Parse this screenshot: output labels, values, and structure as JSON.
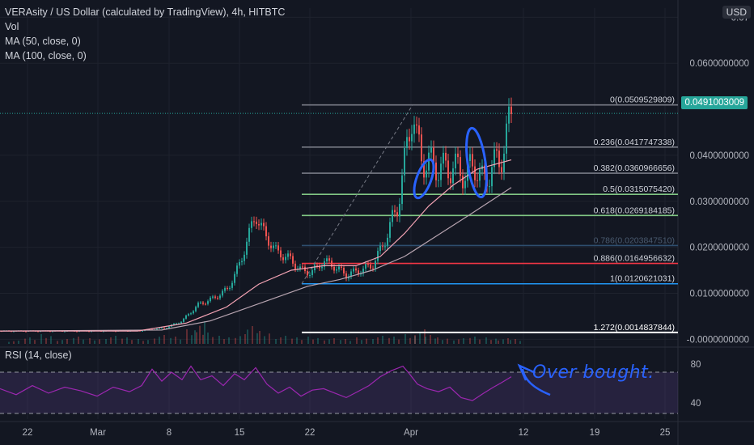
{
  "header": {
    "title": "VERAsity / US Dollar (calculated by TradingView), 4h, HITBTC",
    "indicators": [
      "Vol",
      "MA (50, close, 0)",
      "MA (100, close, 0)"
    ],
    "currency_badge": "USD"
  },
  "rsi": {
    "label": "RSI (14, close)",
    "levels": [
      "80",
      "40"
    ]
  },
  "annotation": "Over bought.",
  "last_price": "0.0491003009",
  "colors": {
    "background": "#131722",
    "up": "#26a69a",
    "down": "#ef5350",
    "ma50": "#f4a3b4",
    "ma100": "#b7a4b0",
    "rsi_line": "#9c27b0",
    "annotation": "#2962ff"
  },
  "chart_data": {
    "type": "candlestick",
    "x_ticks": [
      "22",
      "Mar",
      "8",
      "15",
      "22",
      "Apr",
      "12",
      "19",
      "25"
    ],
    "y_ticks": [
      "0.07",
      "0.0600000000",
      "0.0400000000",
      "0.0300000000",
      "0.0200000000",
      "0.0100000000",
      "-0.0000000000"
    ],
    "ylim": [
      -0.001,
      0.072
    ],
    "fib_levels": [
      {
        "ratio": "0",
        "label": "0(0.0509529809)",
        "value": 0.0509529809,
        "color": "#787b86"
      },
      {
        "ratio": "0.236",
        "label": "0.236(0.0417747338)",
        "value": 0.0417747338,
        "color": "#787b86"
      },
      {
        "ratio": "0.382",
        "label": "0.382(0.0360966656)",
        "value": 0.0360966656,
        "color": "#787b86"
      },
      {
        "ratio": "0.5",
        "label": "0.5(0.0315075420)",
        "value": 0.031507542,
        "color": "#81c784"
      },
      {
        "ratio": "0.618",
        "label": "0.618(0.0269184185)",
        "value": 0.0269184185,
        "color": "#81c784"
      },
      {
        "ratio": "0.786",
        "label": "0.786(0.0203847510)",
        "value": 0.020384751,
        "color": "#2e4e6e"
      },
      {
        "ratio": "0.886",
        "label": "0.886(0.0164956632)",
        "value": 0.0164956632,
        "color": "#f23645"
      },
      {
        "ratio": "1",
        "label": "1(0.0120621031)",
        "value": 0.0120621031,
        "color": "#2196f3"
      },
      {
        "ratio": "1.272",
        "label": "1.272(0.0014837844)",
        "value": 0.0014837844,
        "color": "#ffffff"
      }
    ],
    "price_series": [
      [
        0,
        0.0018
      ],
      [
        55,
        0.0018
      ],
      [
        110,
        0.0018
      ],
      [
        175,
        0.0019
      ],
      [
        205,
        0.0025
      ],
      [
        225,
        0.004
      ],
      [
        245,
        0.0075
      ],
      [
        265,
        0.009
      ],
      [
        282,
        0.011
      ],
      [
        298,
        0.017
      ],
      [
        306,
        0.022
      ],
      [
        316,
        0.027
      ],
      [
        328,
        0.0225
      ],
      [
        342,
        0.019
      ],
      [
        358,
        0.0175
      ],
      [
        372,
        0.015
      ],
      [
        385,
        0.0145
      ],
      [
        400,
        0.017
      ],
      [
        412,
        0.016
      ],
      [
        428,
        0.014
      ],
      [
        445,
        0.015
      ],
      [
        460,
        0.016
      ],
      [
        475,
        0.021
      ],
      [
        490,
        0.028
      ],
      [
        500,
        0.038
      ],
      [
        510,
        0.0505
      ],
      [
        515,
        0.043
      ],
      [
        522,
        0.039
      ],
      [
        535,
        0.038
      ],
      [
        548,
        0.037
      ],
      [
        560,
        0.0375
      ],
      [
        575,
        0.036
      ],
      [
        588,
        0.038
      ],
      [
        597,
        0.034
      ],
      [
        608,
        0.0375
      ],
      [
        618,
        0.039
      ],
      [
        625,
        0.043
      ],
      [
        632,
        0.0491
      ]
    ],
    "ma50": [
      [
        0,
        0.0018
      ],
      [
        170,
        0.0018
      ],
      [
        230,
        0.0035
      ],
      [
        280,
        0.007
      ],
      [
        320,
        0.012
      ],
      [
        360,
        0.015
      ],
      [
        400,
        0.016
      ],
      [
        440,
        0.016
      ],
      [
        470,
        0.018
      ],
      [
        500,
        0.023
      ],
      [
        530,
        0.029
      ],
      [
        560,
        0.0335
      ],
      [
        590,
        0.037
      ],
      [
        632,
        0.039
      ]
    ],
    "ma100": [
      [
        0,
        0.0018
      ],
      [
        200,
        0.002
      ],
      [
        260,
        0.004
      ],
      [
        300,
        0.0065
      ],
      [
        340,
        0.009
      ],
      [
        380,
        0.0115
      ],
      [
        420,
        0.013
      ],
      [
        460,
        0.015
      ],
      [
        500,
        0.018
      ],
      [
        540,
        0.0225
      ],
      [
        580,
        0.027
      ],
      [
        632,
        0.033
      ]
    ],
    "rsi_series": [
      [
        0,
        58
      ],
      [
        20,
        50
      ],
      [
        40,
        62
      ],
      [
        60,
        52
      ],
      [
        80,
        60
      ],
      [
        100,
        55
      ],
      [
        120,
        48
      ],
      [
        140,
        60
      ],
      [
        160,
        54
      ],
      [
        175,
        62
      ],
      [
        188,
        84
      ],
      [
        200,
        68
      ],
      [
        212,
        80
      ],
      [
        225,
        70
      ],
      [
        236,
        88
      ],
      [
        248,
        70
      ],
      [
        262,
        75
      ],
      [
        276,
        62
      ],
      [
        290,
        78
      ],
      [
        302,
        70
      ],
      [
        316,
        86
      ],
      [
        330,
        64
      ],
      [
        344,
        52
      ],
      [
        358,
        60
      ],
      [
        372,
        48
      ],
      [
        386,
        56
      ],
      [
        400,
        58
      ],
      [
        414,
        52
      ],
      [
        428,
        46
      ],
      [
        442,
        54
      ],
      [
        456,
        62
      ],
      [
        470,
        74
      ],
      [
        484,
        82
      ],
      [
        498,
        88
      ],
      [
        506,
        78
      ],
      [
        516,
        64
      ],
      [
        528,
        58
      ],
      [
        542,
        54
      ],
      [
        556,
        60
      ],
      [
        570,
        46
      ],
      [
        584,
        42
      ],
      [
        598,
        52
      ],
      [
        610,
        60
      ],
      [
        620,
        66
      ],
      [
        632,
        74
      ]
    ],
    "volume_series": [
      [
        10,
        4
      ],
      [
        30,
        8
      ],
      [
        50,
        12
      ],
      [
        70,
        6
      ],
      [
        90,
        9
      ],
      [
        110,
        7
      ],
      [
        130,
        10
      ],
      [
        150,
        8
      ],
      [
        170,
        6
      ],
      [
        190,
        11
      ],
      [
        210,
        9
      ],
      [
        230,
        18
      ],
      [
        240,
        28
      ],
      [
        250,
        14
      ],
      [
        270,
        10
      ],
      [
        290,
        12
      ],
      [
        305,
        22
      ],
      [
        320,
        16
      ],
      [
        340,
        10
      ],
      [
        360,
        8
      ],
      [
        380,
        9
      ],
      [
        400,
        7
      ],
      [
        420,
        6
      ],
      [
        440,
        8
      ],
      [
        460,
        10
      ],
      [
        480,
        9
      ],
      [
        500,
        12
      ],
      [
        512,
        18
      ],
      [
        525,
        11
      ],
      [
        540,
        8
      ],
      [
        560,
        7
      ],
      [
        580,
        9
      ],
      [
        600,
        8
      ],
      [
        615,
        7
      ],
      [
        630,
        6
      ]
    ]
  }
}
